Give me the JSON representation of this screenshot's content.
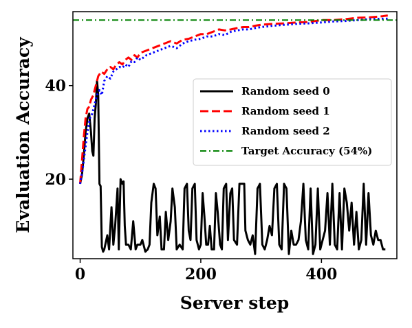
{
  "chart_data": {
    "type": "line",
    "xlabel": "Server step",
    "ylabel": "Evaluation Accuracy",
    "xlim": [
      -12,
      525
    ],
    "ylim": [
      3,
      55.8
    ],
    "x_ticks": [
      0,
      200,
      400
    ],
    "y_ticks": [
      20,
      40
    ],
    "grid": false,
    "legend_position": "center-right",
    "series": [
      {
        "name": "Random seed 0",
        "color": "#000000",
        "style": "solid",
        "points": [
          [
            0,
            19
          ],
          [
            3,
            21
          ],
          [
            6,
            25
          ],
          [
            9,
            30
          ],
          [
            12,
            33
          ],
          [
            15,
            34
          ],
          [
            18,
            30
          ],
          [
            20,
            26
          ],
          [
            22,
            25
          ],
          [
            24,
            33
          ],
          [
            26,
            36
          ],
          [
            28,
            41
          ],
          [
            30,
            38
          ],
          [
            32,
            19
          ],
          [
            34,
            18.5
          ],
          [
            36,
            5.5
          ],
          [
            38,
            4.5
          ],
          [
            40,
            5
          ],
          [
            45,
            8
          ],
          [
            48,
            5
          ],
          [
            52,
            14
          ],
          [
            55,
            6
          ],
          [
            58,
            10
          ],
          [
            62,
            18
          ],
          [
            64,
            5
          ],
          [
            67,
            20
          ],
          [
            70,
            19
          ],
          [
            72,
            19.5
          ],
          [
            74,
            10
          ],
          [
            76,
            6
          ],
          [
            80,
            6
          ],
          [
            84,
            5
          ],
          [
            88,
            11
          ],
          [
            92,
            5
          ],
          [
            95,
            6
          ],
          [
            100,
            6
          ],
          [
            103,
            7
          ],
          [
            108,
            4.5
          ],
          [
            112,
            5
          ],
          [
            115,
            6
          ],
          [
            118,
            15
          ],
          [
            122,
            19
          ],
          [
            125,
            18
          ],
          [
            128,
            8
          ],
          [
            132,
            12
          ],
          [
            135,
            5
          ],
          [
            139,
            5
          ],
          [
            142,
            13
          ],
          [
            146,
            7
          ],
          [
            150,
            11
          ],
          [
            153,
            18
          ],
          [
            157,
            14
          ],
          [
            160,
            5
          ],
          [
            165,
            6
          ],
          [
            170,
            5
          ],
          [
            173,
            18
          ],
          [
            177,
            19
          ],
          [
            180,
            9
          ],
          [
            183,
            7
          ],
          [
            186,
            18
          ],
          [
            190,
            19
          ],
          [
            193,
            7
          ],
          [
            197,
            5
          ],
          [
            200,
            6
          ],
          [
            203,
            17
          ],
          [
            206,
            12
          ],
          [
            209,
            6
          ],
          [
            212,
            6
          ],
          [
            215,
            10
          ],
          [
            218,
            5
          ],
          [
            222,
            5
          ],
          [
            225,
            17
          ],
          [
            228,
            13
          ],
          [
            232,
            6
          ],
          [
            235,
            5
          ],
          [
            238,
            18
          ],
          [
            242,
            19
          ],
          [
            245,
            7
          ],
          [
            249,
            17
          ],
          [
            252,
            18
          ],
          [
            255,
            7
          ],
          [
            260,
            6
          ],
          [
            264,
            19
          ],
          [
            268,
            19
          ],
          [
            272,
            19
          ],
          [
            274,
            9
          ],
          [
            278,
            7
          ],
          [
            282,
            6
          ],
          [
            286,
            8
          ],
          [
            290,
            4
          ],
          [
            294,
            18
          ],
          [
            298,
            19
          ],
          [
            302,
            6
          ],
          [
            306,
            5
          ],
          [
            310,
            7
          ],
          [
            314,
            10
          ],
          [
            318,
            8
          ],
          [
            322,
            18
          ],
          [
            326,
            19
          ],
          [
            330,
            6
          ],
          [
            334,
            5
          ],
          [
            338,
            19
          ],
          [
            342,
            18
          ],
          [
            346,
            4
          ],
          [
            350,
            9
          ],
          [
            354,
            6
          ],
          [
            358,
            6
          ],
          [
            362,
            7
          ],
          [
            366,
            11
          ],
          [
            370,
            19
          ],
          [
            374,
            7
          ],
          [
            378,
            5
          ],
          [
            382,
            18
          ],
          [
            386,
            4
          ],
          [
            390,
            6
          ],
          [
            394,
            18
          ],
          [
            398,
            5
          ],
          [
            402,
            7
          ],
          [
            406,
            9
          ],
          [
            410,
            17
          ],
          [
            414,
            6
          ],
          [
            418,
            19
          ],
          [
            422,
            6
          ],
          [
            426,
            5
          ],
          [
            430,
            17
          ],
          [
            434,
            5
          ],
          [
            438,
            18
          ],
          [
            442,
            15
          ],
          [
            446,
            9
          ],
          [
            450,
            15
          ],
          [
            454,
            6
          ],
          [
            458,
            13
          ],
          [
            462,
            5
          ],
          [
            466,
            7
          ],
          [
            470,
            19
          ],
          [
            474,
            6
          ],
          [
            478,
            17
          ],
          [
            482,
            8
          ],
          [
            486,
            6
          ],
          [
            490,
            9
          ],
          [
            494,
            7
          ],
          [
            498,
            7
          ],
          [
            502,
            5
          ],
          [
            506,
            5
          ]
        ]
      },
      {
        "name": "Random seed 1",
        "color": "#ff0000",
        "style": "dashed",
        "points": [
          [
            0,
            19
          ],
          [
            3,
            24
          ],
          [
            6,
            29
          ],
          [
            9,
            33
          ],
          [
            12,
            35
          ],
          [
            15,
            35.5
          ],
          [
            18,
            37
          ],
          [
            22,
            38
          ],
          [
            26,
            40
          ],
          [
            30,
            42
          ],
          [
            35,
            43
          ],
          [
            40,
            42.5
          ],
          [
            45,
            43.5
          ],
          [
            50,
            44
          ],
          [
            55,
            43.5
          ],
          [
            60,
            44.5
          ],
          [
            65,
            45
          ],
          [
            70,
            44.5
          ],
          [
            75,
            45.5
          ],
          [
            80,
            46
          ],
          [
            85,
            45.5
          ],
          [
            90,
            46.5
          ],
          [
            95,
            46
          ],
          [
            100,
            47
          ],
          [
            110,
            47.5
          ],
          [
            120,
            48
          ],
          [
            130,
            48.5
          ],
          [
            140,
            49
          ],
          [
            150,
            49.5
          ],
          [
            160,
            49
          ],
          [
            170,
            49.8
          ],
          [
            180,
            50
          ],
          [
            190,
            50.5
          ],
          [
            200,
            51
          ],
          [
            210,
            51
          ],
          [
            220,
            51.5
          ],
          [
            230,
            52
          ],
          [
            240,
            51.8
          ],
          [
            250,
            52
          ],
          [
            260,
            52.3
          ],
          [
            270,
            52.5
          ],
          [
            280,
            52.5
          ],
          [
            290,
            52.8
          ],
          [
            300,
            53
          ],
          [
            320,
            53.2
          ],
          [
            340,
            53.3
          ],
          [
            360,
            53.5
          ],
          [
            380,
            53.6
          ],
          [
            400,
            54
          ],
          [
            420,
            54
          ],
          [
            440,
            54.2
          ],
          [
            460,
            54.5
          ],
          [
            480,
            54.6
          ],
          [
            500,
            54.8
          ],
          [
            510,
            55
          ]
        ]
      },
      {
        "name": "Random seed 2",
        "color": "#0000ff",
        "style": "dotted",
        "points": [
          [
            0,
            19
          ],
          [
            4,
            22
          ],
          [
            8,
            26
          ],
          [
            12,
            30
          ],
          [
            16,
            33
          ],
          [
            20,
            34
          ],
          [
            24,
            36
          ],
          [
            28,
            38
          ],
          [
            32,
            39
          ],
          [
            36,
            38
          ],
          [
            40,
            41
          ],
          [
            45,
            42
          ],
          [
            50,
            41.5
          ],
          [
            55,
            43
          ],
          [
            60,
            43.5
          ],
          [
            65,
            44
          ],
          [
            70,
            43.8
          ],
          [
            75,
            44.5
          ],
          [
            80,
            44
          ],
          [
            85,
            45.2
          ],
          [
            90,
            45
          ],
          [
            95,
            46
          ],
          [
            100,
            45.5
          ],
          [
            110,
            46.5
          ],
          [
            120,
            47
          ],
          [
            130,
            47.5
          ],
          [
            140,
            48
          ],
          [
            150,
            48.5
          ],
          [
            160,
            48
          ],
          [
            170,
            49
          ],
          [
            180,
            49.5
          ],
          [
            190,
            49.8
          ],
          [
            200,
            50
          ],
          [
            210,
            50.5
          ],
          [
            220,
            50.5
          ],
          [
            230,
            51
          ],
          [
            240,
            50.8
          ],
          [
            250,
            51.5
          ],
          [
            260,
            51.8
          ],
          [
            270,
            52
          ],
          [
            280,
            52
          ],
          [
            290,
            52.3
          ],
          [
            300,
            52.5
          ],
          [
            320,
            52.8
          ],
          [
            340,
            53
          ],
          [
            360,
            53.2
          ],
          [
            380,
            53.3
          ],
          [
            400,
            53.5
          ],
          [
            420,
            53.7
          ],
          [
            440,
            53.8
          ],
          [
            460,
            54
          ],
          [
            480,
            54.2
          ],
          [
            500,
            54.3
          ],
          [
            510,
            54.3
          ]
        ]
      },
      {
        "name": "Target Accuracy (54%)",
        "color": "#008000",
        "style": "dashdot",
        "points": [
          [
            -12,
            54
          ],
          [
            525,
            54
          ]
        ]
      }
    ]
  }
}
